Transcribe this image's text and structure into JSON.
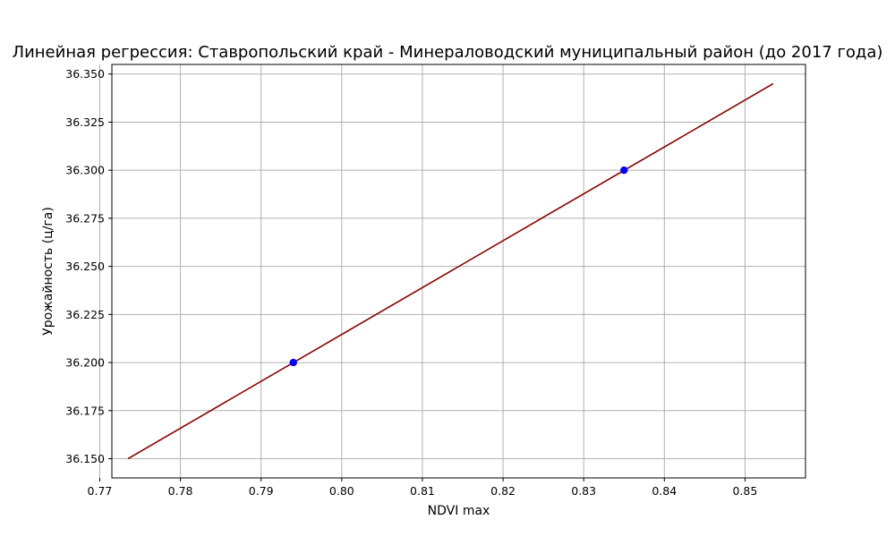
{
  "chart_data": {
    "type": "scatter",
    "title": "Линейная регрессия: Ставропольский край - Минераловодский муниципальный район (до 2017 года)",
    "xlabel": "NDVI max",
    "ylabel": "Урожайность (ц/га)",
    "xlim": [
      0.7715,
      0.8575
    ],
    "ylim": [
      36.14,
      36.355
    ],
    "x_ticks": [
      0.77,
      0.78,
      0.79,
      0.8,
      0.81,
      0.82,
      0.83,
      0.84,
      0.85
    ],
    "x_tick_labels": [
      "0.77",
      "0.78",
      "0.79",
      "0.80",
      "0.81",
      "0.82",
      "0.83",
      "0.84",
      "0.85"
    ],
    "y_ticks": [
      36.15,
      36.175,
      36.2,
      36.225,
      36.25,
      36.275,
      36.3,
      36.325,
      36.35
    ],
    "y_tick_labels": [
      "36.150",
      "36.175",
      "36.200",
      "36.225",
      "36.250",
      "36.275",
      "36.300",
      "36.325",
      "36.350"
    ],
    "grid": true,
    "series": [
      {
        "kind": "scatter",
        "color": "#0000ff",
        "points": [
          {
            "x": 0.794,
            "y": 36.2
          },
          {
            "x": 0.835,
            "y": 36.3
          }
        ]
      },
      {
        "kind": "line",
        "color": "#8b0000",
        "points": [
          {
            "x": 0.7735,
            "y": 36.15
          },
          {
            "x": 0.8535,
            "y": 36.345
          }
        ]
      }
    ]
  }
}
